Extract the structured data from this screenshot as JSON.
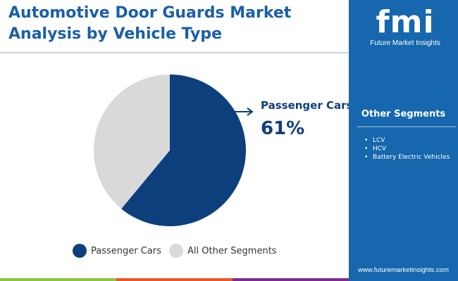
{
  "title": "Automotive Door Guards Market Analysis by Vehicle Type",
  "brand": {
    "logo": "fmi",
    "name": "Future Market Insights",
    "url": "www.futuremarketinsights.com"
  },
  "sidebar": {
    "title": "Other Segments",
    "items": [
      "LCV",
      "HCV",
      "Battery Electric Vehicles"
    ]
  },
  "colors": {
    "passenger": "#0d3f7d",
    "other": "#d9d9d9",
    "accent": "#1667ad",
    "bars": [
      "#8cc63f",
      "#e8582a",
      "#7b2d8e",
      "#1667ad"
    ]
  },
  "chart_data": {
    "type": "pie",
    "slices": [
      {
        "name": "Passenger Cars",
        "value": 61
      },
      {
        "name": "All Other Segments",
        "value": 39
      }
    ],
    "callout": {
      "label": "Passenger Cars",
      "value": "61%"
    },
    "legend": [
      "Passenger Cars",
      "All Other Segments"
    ],
    "legend_position": "bottom"
  }
}
